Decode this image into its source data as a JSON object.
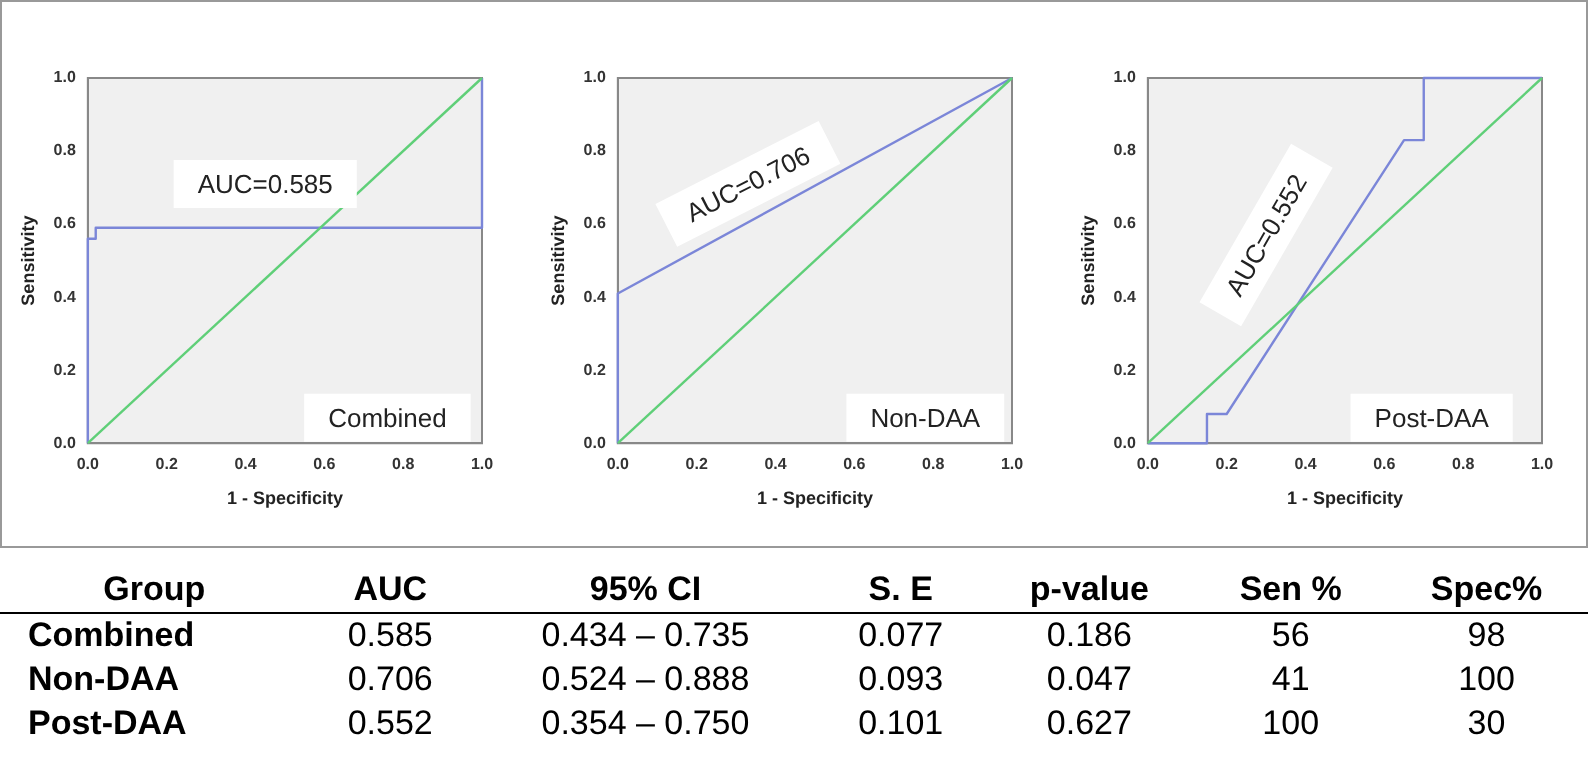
{
  "chart_data": [
    {
      "type": "line",
      "xlabel": "1 - Specificity",
      "ylabel": "Sensitivity",
      "xlim": [
        0,
        1
      ],
      "ylim": [
        0,
        1
      ],
      "xticks": [
        {
          "value": 0,
          "label": "0.0"
        },
        {
          "value": 0.2,
          "label": "0.2"
        },
        {
          "value": 0.4,
          "label": "0.4"
        },
        {
          "value": 0.6,
          "label": "0.6"
        },
        {
          "value": 0.8,
          "label": "0.8"
        },
        {
          "value": 1,
          "label": "1.0"
        }
      ],
      "yticks": [
        {
          "value": 0,
          "label": "0.0"
        },
        {
          "value": 0.2,
          "label": "0.2"
        },
        {
          "value": 0.4,
          "label": "0.4"
        },
        {
          "value": 0.6,
          "label": "0.6"
        },
        {
          "value": 0.8,
          "label": "0.8"
        },
        {
          "value": 1,
          "label": "1.0"
        }
      ],
      "series": [
        {
          "color": "#7b86d8",
          "x": [
            0,
            0,
            0.02,
            0.02,
            1,
            1
          ],
          "values": [
            0,
            0.56,
            0.56,
            0.59,
            0.59,
            1
          ]
        },
        {
          "color": "#5fcf78",
          "x": [
            0,
            1
          ],
          "values": [
            0,
            1
          ]
        }
      ],
      "annotations": [
        "AUC=0.585",
        "Combined"
      ]
    },
    {
      "type": "line",
      "xlabel": "1 - Specificity",
      "ylabel": "Sensitivity",
      "xlim": [
        0,
        1
      ],
      "ylim": [
        0,
        1
      ],
      "xticks": [
        {
          "value": 0,
          "label": "0.0"
        },
        {
          "value": 0.2,
          "label": "0.2"
        },
        {
          "value": 0.4,
          "label": "0.4"
        },
        {
          "value": 0.6,
          "label": "0.6"
        },
        {
          "value": 0.8,
          "label": "0.8"
        },
        {
          "value": 1,
          "label": "1.0"
        }
      ],
      "yticks": [
        {
          "value": 0,
          "label": "0.0"
        },
        {
          "value": 0.2,
          "label": "0.2"
        },
        {
          "value": 0.4,
          "label": "0.4"
        },
        {
          "value": 0.6,
          "label": "0.6"
        },
        {
          "value": 0.8,
          "label": "0.8"
        },
        {
          "value": 1,
          "label": "1.0"
        }
      ],
      "series": [
        {
          "color": "#7b86d8",
          "x": [
            0,
            0,
            1
          ],
          "values": [
            0,
            0.41,
            1
          ]
        },
        {
          "color": "#5fcf78",
          "x": [
            0,
            1
          ],
          "values": [
            0,
            1
          ]
        }
      ],
      "annotations": [
        "AUC=0.706",
        "Non-DAA"
      ]
    },
    {
      "type": "line",
      "xlabel": "1 - Specificity",
      "ylabel": "Sensitivity",
      "xlim": [
        0,
        1
      ],
      "ylim": [
        0,
        1
      ],
      "xticks": [
        {
          "value": 0,
          "label": "0.0"
        },
        {
          "value": 0.2,
          "label": "0.2"
        },
        {
          "value": 0.4,
          "label": "0.4"
        },
        {
          "value": 0.6,
          "label": "0.6"
        },
        {
          "value": 0.8,
          "label": "0.8"
        },
        {
          "value": 1,
          "label": "1.0"
        }
      ],
      "yticks": [
        {
          "value": 0,
          "label": "0.0"
        },
        {
          "value": 0.2,
          "label": "0.2"
        },
        {
          "value": 0.4,
          "label": "0.4"
        },
        {
          "value": 0.6,
          "label": "0.6"
        },
        {
          "value": 0.8,
          "label": "0.8"
        },
        {
          "value": 1,
          "label": "1.0"
        }
      ],
      "series": [
        {
          "color": "#7b86d8",
          "x": [
            0,
            0.15,
            0.15,
            0.2,
            0.65,
            0.7,
            0.7,
            1
          ],
          "values": [
            0,
            0,
            0.08,
            0.08,
            0.83,
            0.83,
            1,
            1
          ]
        },
        {
          "color": "#5fcf78",
          "x": [
            0,
            1
          ],
          "values": [
            0,
            1
          ]
        }
      ],
      "annotations": [
        "AUC=0.552",
        "Post-DAA"
      ]
    },
    {
      "type": "other",
      "ylabel": "Group",
      "categories": [
        "AUC",
        "95% CI",
        "S. E",
        "p-value",
        "Sen %",
        "Spec%"
      ],
      "y_categories": [
        "Combined",
        "Non-DAA",
        "Post-DAA"
      ],
      "cell_labels": [
        [
          "0.585",
          "0.434 – 0.735",
          "0.077",
          "0.186",
          "56",
          "98"
        ],
        [
          "0.706",
          "0.524 – 0.888",
          "0.093",
          "0.047",
          "41",
          "100"
        ],
        [
          "0.552",
          "0.354 – 0.750",
          "0.101",
          "0.627",
          "100",
          "30"
        ]
      ]
    }
  ]
}
